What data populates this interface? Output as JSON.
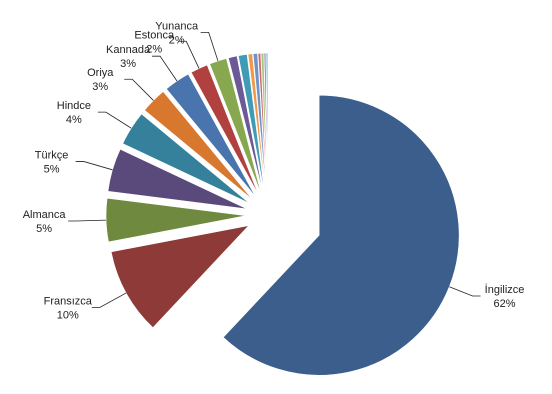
{
  "chart_data": {
    "type": "pie",
    "categories": [
      "İngilizce",
      "Fransızca",
      "Almanca",
      "Türkçe",
      "Hindce",
      "Oriya",
      "Kannada",
      "Estonca",
      "Yunanca",
      null,
      null,
      null,
      null,
      null,
      null,
      null,
      null
    ],
    "values": [
      62,
      10,
      5,
      5,
      4,
      3,
      3,
      2,
      2,
      1,
      1,
      0.5,
      0.5,
      0.3,
      0.3,
      0.2,
      0.2
    ],
    "value_labels": [
      "62%",
      "10%",
      "5%",
      "5%",
      "4%",
      "3%",
      "3%",
      "2%",
      "2%",
      null,
      null,
      null,
      null,
      null,
      null,
      null,
      null
    ],
    "colors": [
      "#3b5e8c",
      "#8e3a39",
      "#6f8a3e",
      "#5a4a7b",
      "#35809a",
      "#d8782f",
      "#4a74ad",
      "#b0413e",
      "#87a84f",
      "#6c5a96",
      "#3f9cb7",
      "#ef9a4a",
      "#6f92c9",
      "#c96a68",
      "#a9c27a",
      "#8f7eb2",
      "#7bb9cf"
    ]
  }
}
